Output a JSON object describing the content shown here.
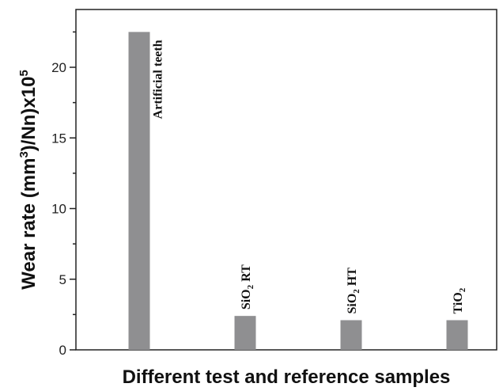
{
  "chart_data": {
    "type": "bar",
    "title": "",
    "xlabel": "Different test and reference samples",
    "ylabel": {
      "main": "Wear rate (mm",
      "sup1": "3",
      "mid": ")/Nn)x10",
      "sup2": "5"
    },
    "ylim": [
      0,
      24
    ],
    "yticks": [
      0,
      5,
      10,
      15,
      20
    ],
    "grid": false,
    "bar_color": "#8f8f91",
    "categories": [
      {
        "label": "Artificial teeth",
        "base": "Artificial teeth",
        "sub": "",
        "rest": ""
      },
      {
        "label": "SiO2 RT",
        "base": "SiO",
        "sub": "2",
        "rest": " RT"
      },
      {
        "label": "SiO2 HT",
        "base": "SiO",
        "sub": "2",
        "rest": " HT"
      },
      {
        "label": "TiO2",
        "base": "TiO",
        "sub": "2",
        "rest": ""
      }
    ],
    "values": [
      22.5,
      2.4,
      2.1,
      2.1
    ]
  }
}
